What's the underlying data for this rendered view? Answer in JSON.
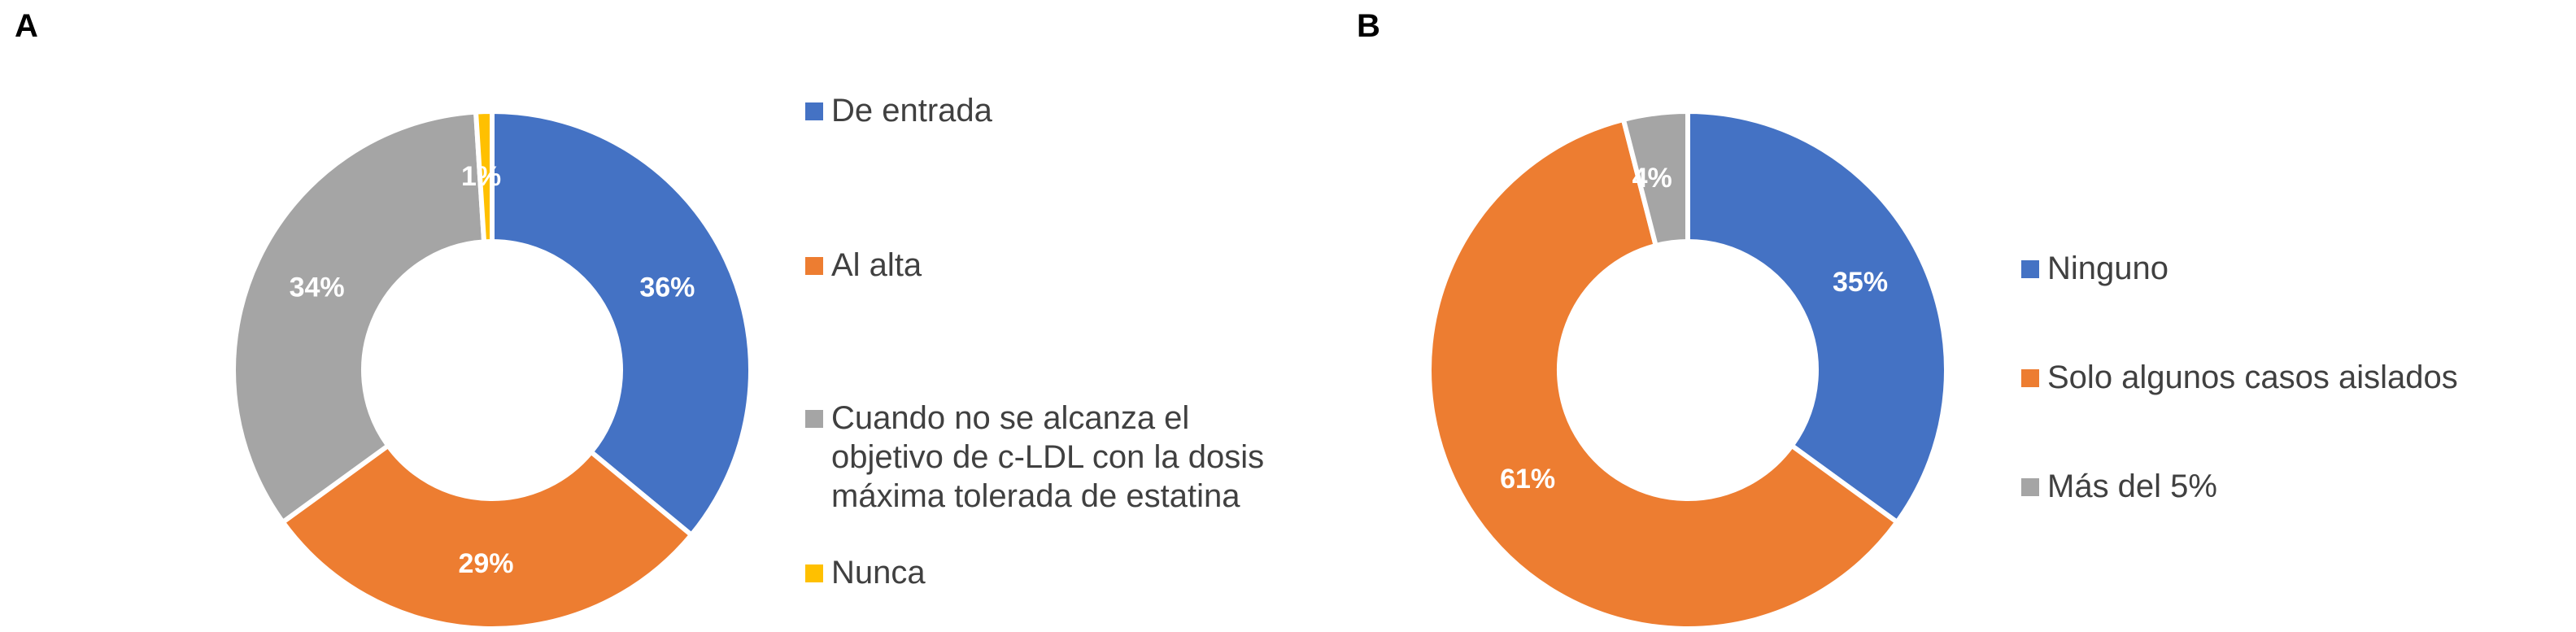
{
  "chart_data": [
    {
      "panel": "A",
      "type": "pie",
      "donut": true,
      "categories": [
        "De entrada",
        "Al alta",
        "Cuando no se alcanza el objetivo de c-LDL con la dosis máxima tolerada de estatina",
        "Nunca"
      ],
      "values": [
        36,
        29,
        34,
        1
      ],
      "labels": [
        "36%",
        "29%",
        "34%",
        "1%"
      ],
      "colors": [
        "#4472C4",
        "#ED7D31",
        "#A5A5A5",
        "#FFC000"
      ],
      "legend_position": "right"
    },
    {
      "panel": "B",
      "type": "pie",
      "donut": true,
      "categories": [
        "Ninguno",
        "Solo algunos casos aislados",
        "Más del 5%"
      ],
      "values": [
        35,
        61,
        4
      ],
      "labels": [
        "35%",
        "61%",
        "4%"
      ],
      "colors": [
        "#4472C4",
        "#ED7D31",
        "#A5A5A5"
      ],
      "legend_position": "right"
    }
  ],
  "legend_a": [
    "De entrada",
    "Al alta",
    "Cuando no se alcanza el\nobjetivo de c-LDL con la dosis\nmáxima tolerada de estatina",
    "Nunca"
  ],
  "legend_b": [
    "Ninguno",
    "Solo algunos casos aislados",
    "Más del 5%"
  ]
}
